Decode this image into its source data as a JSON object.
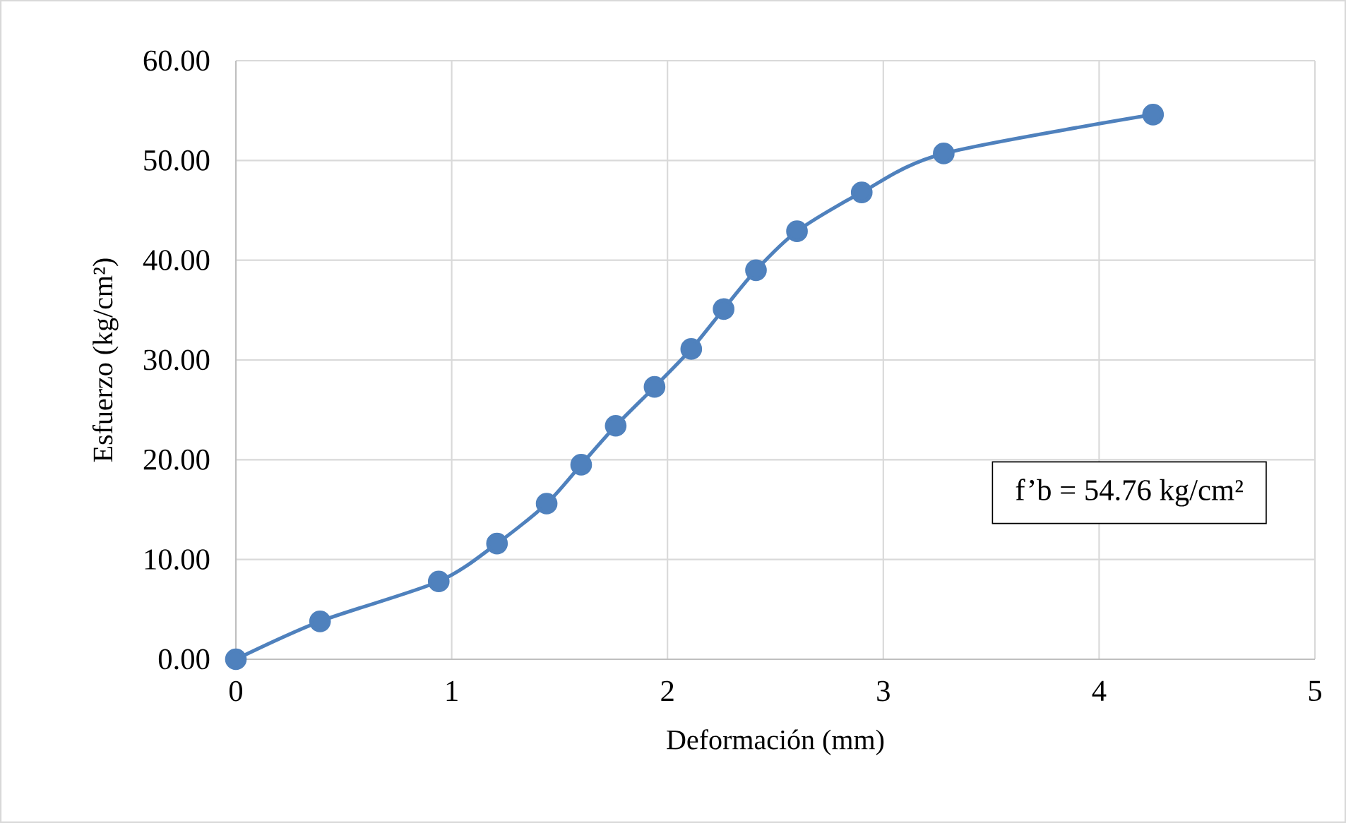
{
  "chart_data": {
    "type": "line",
    "xlabel": "Deformación (mm)",
    "ylabel": "Esfuerzo (kg/cm²)",
    "x": [
      0,
      0.39,
      0.94,
      1.21,
      1.44,
      1.6,
      1.76,
      1.94,
      2.11,
      2.26,
      2.41,
      2.6,
      2.9,
      3.28,
      4.25
    ],
    "series": [
      {
        "color": "#4f81bd",
        "values": [
          0,
          3.8,
          7.8,
          11.6,
          15.6,
          19.5,
          23.4,
          27.3,
          31.1,
          35.1,
          39.0,
          42.9,
          46.8,
          50.7,
          54.6
        ]
      }
    ],
    "xlim": [
      0,
      5
    ],
    "xticks": [
      0,
      1,
      2,
      3,
      4,
      5
    ],
    "ylim": [
      0,
      60
    ],
    "yticks": [
      {
        "value": 0,
        "label": "0.00"
      },
      {
        "value": 10,
        "label": "10.00"
      },
      {
        "value": 20,
        "label": "20.00"
      },
      {
        "value": 30,
        "label": "30.00"
      },
      {
        "value": 40,
        "label": "40.00"
      },
      {
        "value": 50,
        "label": "50.00"
      },
      {
        "value": 60,
        "label": "60.00"
      }
    ],
    "grid": true,
    "marker": "circle",
    "line_style": "solid",
    "annotations": [
      "f’b = 54.76 kg/cm²"
    ]
  }
}
